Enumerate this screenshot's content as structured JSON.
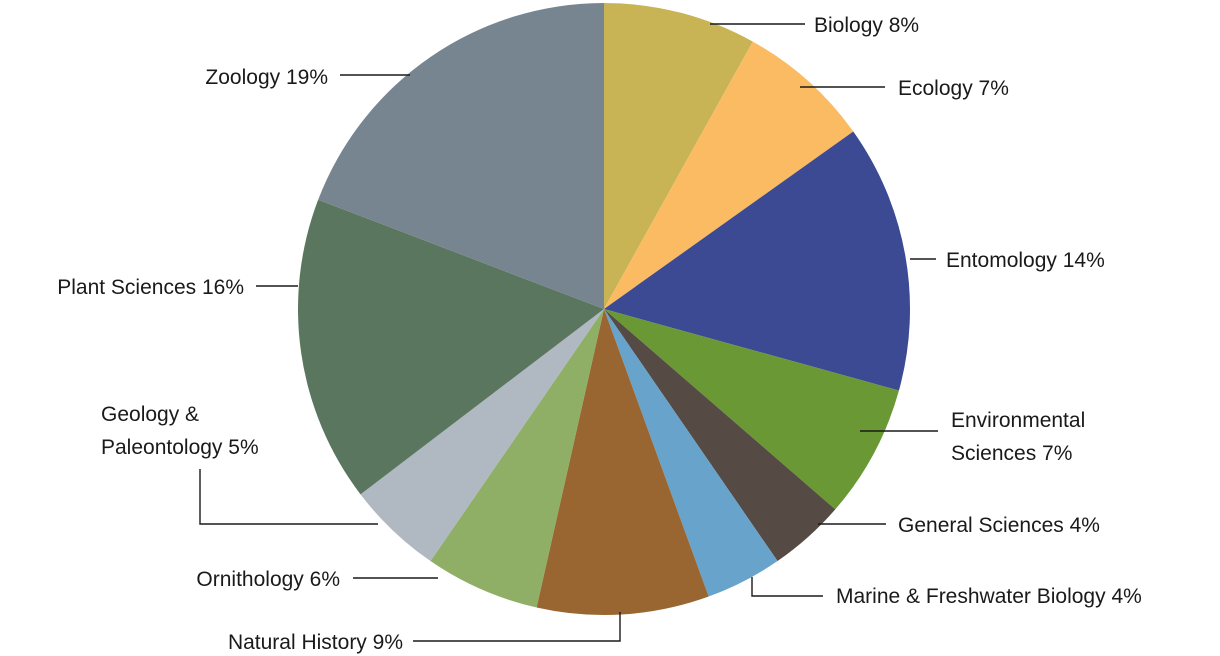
{
  "chart_data": {
    "type": "pie",
    "start": "12 o'clock",
    "direction": "clockwise",
    "slices": [
      {
        "label": "Biology 8%",
        "value": 8,
        "color": "#c8b455"
      },
      {
        "label": "Ecology 7%",
        "value": 7,
        "color": "#fbbb63"
      },
      {
        "label": "Entomology 14%",
        "value": 14,
        "color": "#3b4a93"
      },
      {
        "label": "Environmental Sciences 7%",
        "label_lines": [
          "Environmental",
          "Sciences 7%"
        ],
        "value": 7,
        "color": "#6a9834"
      },
      {
        "label": "General Sciences 4%",
        "value": 4,
        "color": "#554a44"
      },
      {
        "label": "Marine & Freshwater Biology 4%",
        "value": 4,
        "color": "#67a3ca"
      },
      {
        "label": "Natural History 9%",
        "value": 9,
        "color": "#996632"
      },
      {
        "label": "Ornithology 6%",
        "value": 6,
        "color": "#8faf66"
      },
      {
        "label": "Geology & Paleontology 5%",
        "label_lines": [
          "Geology &",
          "Paleontology 5%"
        ],
        "value": 5,
        "color": "#b0b8c2"
      },
      {
        "label": "Plant Sciences 16%",
        "value": 16,
        "color": "#5b765e"
      },
      {
        "label": "Zoology 19%",
        "value": 19,
        "color": "#778591"
      }
    ]
  }
}
